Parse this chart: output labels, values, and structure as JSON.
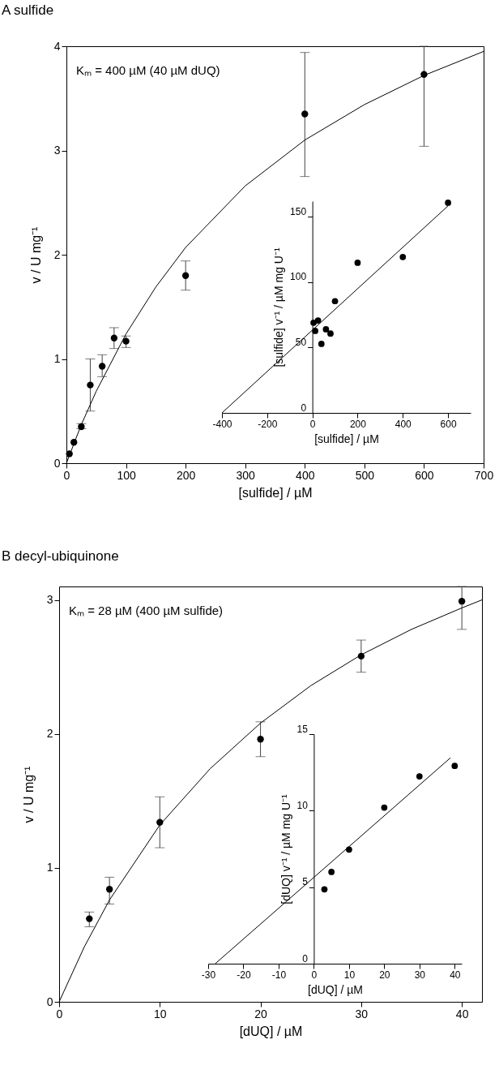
{
  "chart_data": [
    {
      "type": "scatter",
      "title": "A   sulfide",
      "xlabel": "[sulfide] / µM",
      "ylabel": "v / U mg⁻¹",
      "annotations": [
        "Kₘ = 400 µM (40 µM dUQ)"
      ],
      "xlim": [
        0,
        700
      ],
      "ylim": [
        0,
        4
      ],
      "xticks": [
        0,
        100,
        200,
        300,
        400,
        500,
        600,
        700
      ],
      "yticks": [
        0,
        1,
        2,
        3,
        4
      ],
      "series": [
        {
          "type": "scatter",
          "marker": "circle",
          "color": "#000000",
          "x": [
            5,
            12.5,
            25,
            40,
            60,
            80,
            100,
            200,
            400,
            600
          ],
          "values": [
            0.09,
            0.2,
            0.35,
            0.75,
            0.93,
            1.2,
            1.17,
            1.8,
            3.35,
            3.73
          ],
          "errors": [
            null,
            null,
            [
              0.33,
              0.38
            ],
            [
              0.5,
              1.0
            ],
            [
              0.83,
              1.04
            ],
            [
              1.1,
              1.3
            ],
            [
              1.11,
              1.22
            ],
            [
              1.66,
              1.94
            ],
            [
              2.75,
              3.94
            ],
            [
              3.04,
              4.0
            ]
          ]
        },
        {
          "type": "line",
          "color": "#000000",
          "x": [
            0,
            25,
            50,
            100,
            150,
            200,
            300,
            400,
            500,
            600,
            700
          ],
          "values": [
            0,
            0.37,
            0.69,
            1.24,
            1.69,
            2.07,
            2.66,
            3.1,
            3.44,
            3.72,
            3.95
          ]
        }
      ]
    },
    {
      "type": "scatter",
      "xlabel": "[sulfide] / µM",
      "ylabel": "[sulfide] v⁻¹ / µM mg U⁻¹",
      "xlim": [
        -400,
        700
      ],
      "ylim": [
        0,
        162
      ],
      "xticks": [
        -400,
        -200,
        0,
        200,
        400,
        600
      ],
      "yticks": [
        0,
        50,
        100,
        150
      ],
      "series": [
        {
          "type": "scatter",
          "marker": "circle",
          "color": "#000000",
          "x": [
            5,
            12.5,
            25,
            40,
            60,
            80,
            100,
            200,
            400,
            600
          ],
          "values": [
            69,
            62.7,
            70.7,
            52.8,
            64,
            60.7,
            85.5,
            114.9,
            119.3,
            160.8
          ]
        },
        {
          "type": "line",
          "color": "#000000",
          "x": [
            -400,
            600
          ],
          "values": [
            0,
            158.4
          ]
        }
      ]
    },
    {
      "type": "scatter",
      "title": "B   decyl-ubiquinone",
      "xlabel": "[dUQ] / µM",
      "ylabel": "v / U mg⁻¹",
      "annotations": [
        "Kₘ = 28 µM (400 µM sulfide)"
      ],
      "xlim": [
        0,
        42
      ],
      "ylim": [
        0,
        3.1
      ],
      "xticks": [
        0,
        10,
        20,
        30,
        40
      ],
      "yticks": [
        0,
        1,
        2,
        3
      ],
      "series": [
        {
          "type": "scatter",
          "marker": "circle",
          "color": "#000000",
          "x": [
            3,
            5,
            10,
            20,
            30,
            40
          ],
          "values": [
            0.62,
            0.84,
            1.34,
            1.96,
            2.58,
            2.99
          ],
          "errors": [
            [
              0.56,
              0.67
            ],
            [
              0.73,
              0.93
            ],
            [
              1.15,
              1.53
            ],
            [
              1.83,
              2.09
            ],
            [
              2.46,
              2.7
            ],
            [
              2.78,
              3.1
            ]
          ]
        },
        {
          "type": "line",
          "color": "#000000",
          "x": [
            0,
            2.5,
            5,
            10,
            15,
            20,
            25,
            30,
            35,
            40,
            42
          ],
          "values": [
            0,
            0.41,
            0.76,
            1.32,
            1.74,
            2.08,
            2.36,
            2.59,
            2.78,
            2.94,
            3.0
          ]
        }
      ]
    },
    {
      "type": "scatter",
      "xlabel": "[dUQ] / µM",
      "ylabel": "[dUQ] v⁻¹ / µM mg U⁻¹",
      "xlim": [
        -30,
        42
      ],
      "ylim": [
        0,
        15
      ],
      "xticks": [
        -30,
        -20,
        -10,
        0,
        10,
        20,
        30,
        40
      ],
      "yticks": [
        0,
        5,
        10,
        15
      ],
      "series": [
        {
          "type": "scatter",
          "marker": "circle",
          "color": "#000000",
          "x": [
            3,
            5,
            10,
            20,
            30,
            40
          ],
          "values": [
            4.86,
            5.99,
            7.46,
            10.2,
            12.24,
            12.92
          ]
        },
        {
          "type": "line",
          "color": "#000000",
          "x": [
            -28,
            38.8
          ],
          "values": [
            0,
            13.45
          ]
        }
      ]
    }
  ]
}
